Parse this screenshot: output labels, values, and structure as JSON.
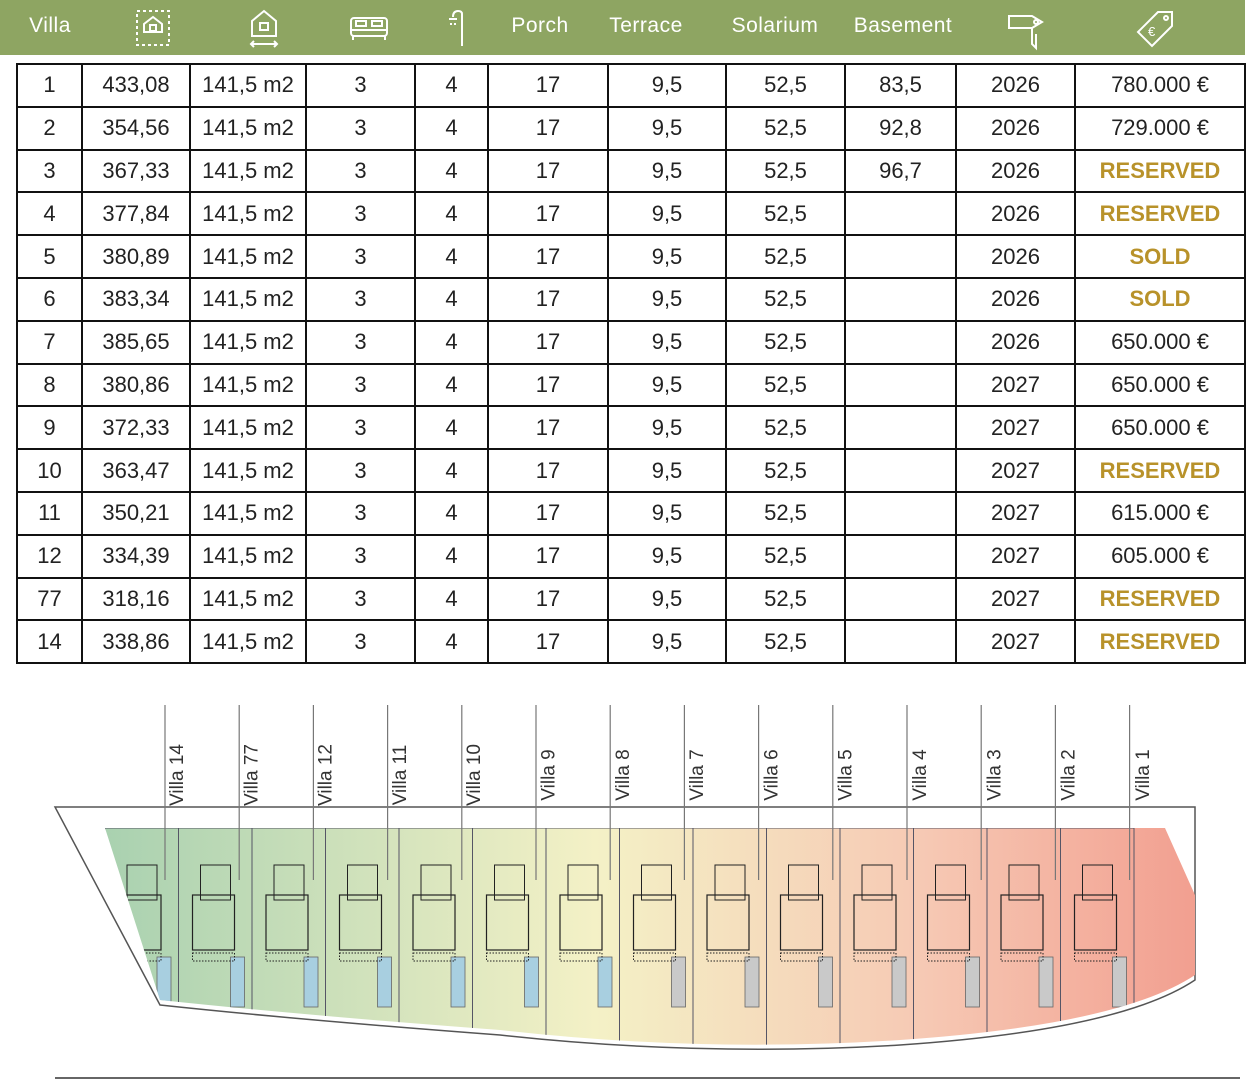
{
  "header": {
    "villa": "Villa",
    "porch": "Porch",
    "terrace": "Terrace",
    "solarium": "Solarium",
    "basement": "Basement"
  },
  "table": {
    "rows": [
      [
        "1",
        "433,08",
        "141,5 m2",
        "3",
        "4",
        "17",
        "9,5",
        "52,5",
        "83,5",
        "2026",
        "780.000 €"
      ],
      [
        "2",
        "354,56",
        "141,5 m2",
        "3",
        "4",
        "17",
        "9,5",
        "52,5",
        "92,8",
        "2026",
        "729.000 €"
      ],
      [
        "3",
        "367,33",
        "141,5 m2",
        "3",
        "4",
        "17",
        "9,5",
        "52,5",
        "96,7",
        "2026",
        "RESERVED"
      ],
      [
        "4",
        "377,84",
        "141,5 m2",
        "3",
        "4",
        "17",
        "9,5",
        "52,5",
        null,
        "2026",
        "RESERVED"
      ],
      [
        "5",
        "380,89",
        "141,5 m2",
        "3",
        "4",
        "17",
        "9,5",
        "52,5",
        null,
        "2026",
        "SOLD"
      ],
      [
        "6",
        "383,34",
        "141,5 m2",
        "3",
        "4",
        "17",
        "9,5",
        "52,5",
        null,
        "2026",
        "SOLD"
      ],
      [
        "7",
        "385,65",
        "141,5 m2",
        "3",
        "4",
        "17",
        "9,5",
        "52,5",
        null,
        "2026",
        "650.000 €"
      ],
      [
        "8",
        "380,86",
        "141,5 m2",
        "3",
        "4",
        "17",
        "9,5",
        "52,5",
        null,
        "2027",
        "650.000 €"
      ],
      [
        "9",
        "372,33",
        "141,5 m2",
        "3",
        "4",
        "17",
        "9,5",
        "52,5",
        null,
        "2027",
        "650.000 €"
      ],
      [
        "10",
        "363,47",
        "141,5 m2",
        "3",
        "4",
        "17",
        "9,5",
        "52,5",
        null,
        "2027",
        "RESERVED"
      ],
      [
        "11",
        "350,21",
        "141,5 m2",
        "3",
        "4",
        "17",
        "9,5",
        "52,5",
        null,
        "2027",
        "615.000 €"
      ],
      [
        "12",
        "334,39",
        "141,5 m2",
        "3",
        "4",
        "17",
        "9,5",
        "52,5",
        null,
        "2027",
        "605.000 €"
      ],
      [
        "77",
        "318,16",
        "141,5 m2",
        "3",
        "4",
        "17",
        "9,5",
        "52,5",
        null,
        "2027",
        "RESERVED"
      ],
      [
        "14",
        "338,86",
        "141,5 m2",
        "3",
        "4",
        "17",
        "9,5",
        "52,5",
        null,
        "2027",
        "RESERVED"
      ]
    ]
  },
  "plan": {
    "labels": [
      "Villa 14",
      "Villa 77",
      "Villa 12",
      "Villa 11",
      "Villa 10",
      "Villa 9",
      "Villa 8",
      "Villa 7",
      "Villa 6",
      "Villa 5",
      "Villa 4",
      "Villa 3",
      "Villa 2",
      "Villa 1"
    ]
  }
}
